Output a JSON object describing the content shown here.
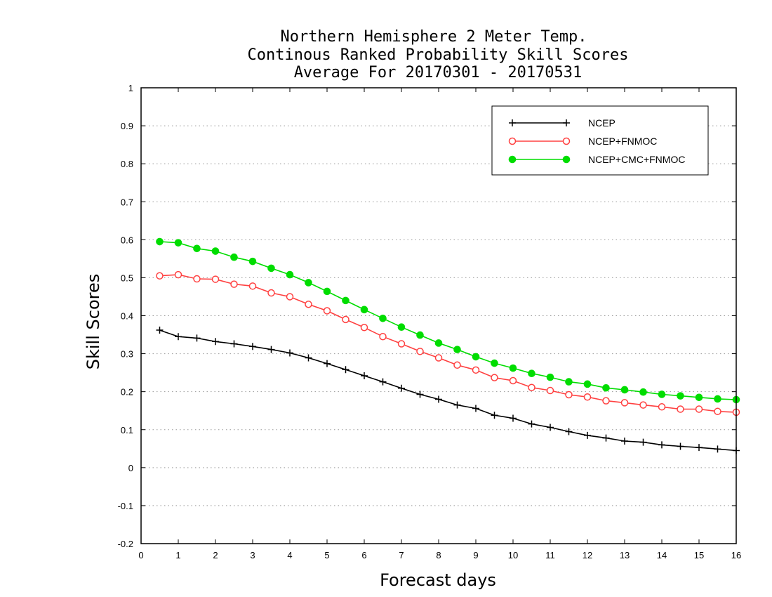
{
  "chart_data": {
    "type": "line",
    "title_lines": [
      "Northern Hemisphere 2 Meter Temp.",
      "Continous Ranked Probability Skill Scores",
      "Average For 20170301 - 20170531"
    ],
    "xlabel": "Forecast days",
    "ylabel": "Skill Scores",
    "xlim": [
      0,
      16
    ],
    "ylim": [
      -0.2,
      1
    ],
    "xticks": [
      0,
      1,
      2,
      3,
      4,
      5,
      6,
      7,
      8,
      9,
      10,
      11,
      12,
      13,
      14,
      15,
      16
    ],
    "yticks": [
      -0.2,
      -0.1,
      0,
      0.1,
      0.2,
      0.3,
      0.4,
      0.5,
      0.6,
      0.7,
      0.8,
      0.9,
      1
    ],
    "ytick_labels": [
      "-0.2",
      "-0.1",
      "0",
      "0.1",
      "0.2",
      "0.3",
      "0.4",
      "0.5",
      "0.6",
      "0.7",
      "0.8",
      "0.9",
      "1"
    ],
    "grid": "horizontal dotted",
    "legend_position": "top-right",
    "x": [
      0.5,
      1,
      1.5,
      2,
      2.5,
      3,
      3.5,
      4,
      4.5,
      5,
      5.5,
      6,
      6.5,
      7,
      7.5,
      8,
      8.5,
      9,
      9.5,
      10,
      10.5,
      11,
      11.5,
      12,
      12.5,
      13,
      13.5,
      14,
      14.5,
      15,
      15.5,
      16
    ],
    "series": [
      {
        "name": "NCEP",
        "color": "#000000",
        "marker": "plus",
        "values": [
          0.362,
          0.345,
          0.341,
          0.332,
          0.326,
          0.319,
          0.311,
          0.302,
          0.289,
          0.274,
          0.258,
          0.242,
          0.226,
          0.209,
          0.193,
          0.18,
          0.165,
          0.156,
          0.138,
          0.13,
          0.115,
          0.106,
          0.095,
          0.085,
          0.078,
          0.07,
          0.067,
          0.06,
          0.056,
          0.053,
          0.049,
          0.045
        ]
      },
      {
        "name": "NCEP+FNMOC",
        "color": "#ff4040",
        "marker": "open-circle",
        "values": [
          0.505,
          0.508,
          0.497,
          0.496,
          0.483,
          0.478,
          0.46,
          0.45,
          0.43,
          0.413,
          0.39,
          0.369,
          0.345,
          0.326,
          0.306,
          0.289,
          0.27,
          0.257,
          0.237,
          0.229,
          0.211,
          0.203,
          0.192,
          0.186,
          0.176,
          0.171,
          0.165,
          0.16,
          0.154,
          0.154,
          0.148,
          0.146
        ]
      },
      {
        "name": "NCEP+CMC+FNMOC",
        "color": "#00dd00",
        "marker": "filled-circle",
        "values": [
          0.595,
          0.592,
          0.577,
          0.57,
          0.554,
          0.543,
          0.525,
          0.508,
          0.487,
          0.464,
          0.44,
          0.416,
          0.393,
          0.37,
          0.349,
          0.328,
          0.311,
          0.292,
          0.275,
          0.262,
          0.248,
          0.238,
          0.226,
          0.22,
          0.21,
          0.205,
          0.199,
          0.193,
          0.189,
          0.185,
          0.181,
          0.179
        ]
      }
    ]
  }
}
